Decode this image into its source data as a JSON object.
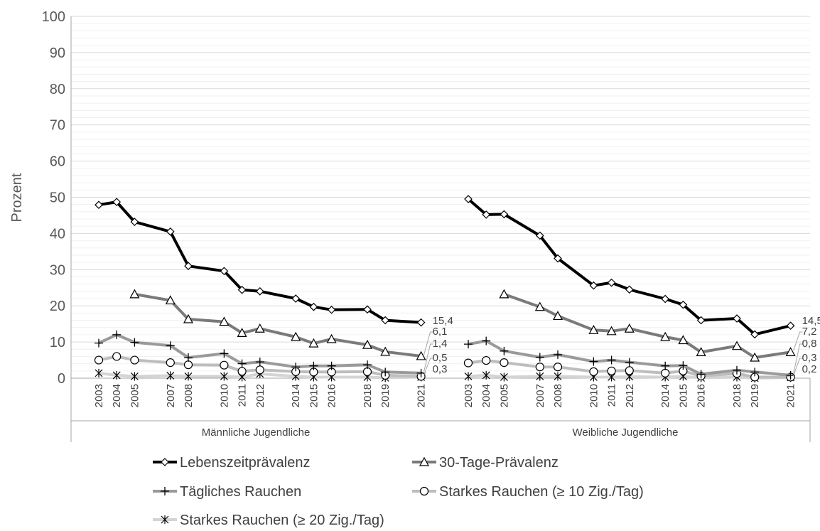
{
  "chart_data": {
    "type": "line",
    "ylabel": "Prozent",
    "ylim": [
      0,
      100
    ],
    "yticks": [
      0,
      10,
      20,
      30,
      40,
      50,
      60,
      70,
      80,
      90,
      100
    ],
    "grid": "horizontal",
    "legend_position": "bottom",
    "groups": [
      {
        "label": "Männliche Jugendliche",
        "x": [
          "2003",
          "2004",
          "2005",
          "2007",
          "2008",
          "2010",
          "2011",
          "2012",
          "2014",
          "2015",
          "2016",
          "2018",
          "2019",
          "2021"
        ],
        "series": [
          {
            "name": "Lebenszeitprävalenz",
            "values": [
              47.9,
              48.7,
              43.2,
              40.5,
              31.0,
              29.6,
              24.4,
              24.0,
              22.0,
              19.7,
              18.9,
              19.0,
              16.0,
              15.4
            ]
          },
          {
            "name": "30-Tage-Prävalenz",
            "values": [
              null,
              null,
              23.2,
              21.5,
              16.3,
              15.6,
              12.5,
              13.7,
              11.4,
              9.6,
              10.8,
              9.2,
              7.3,
              6.1
            ]
          },
          {
            "name": "Tägliches Rauchen",
            "values": [
              9.7,
              12.0,
              9.9,
              9.0,
              5.7,
              6.8,
              4.0,
              4.5,
              3.1,
              3.4,
              3.4,
              3.7,
              1.7,
              1.4
            ]
          },
          {
            "name": "Starkes Rauchen (≥ 10 Zig./Tag)",
            "values": [
              5.0,
              6.0,
              5.0,
              4.3,
              3.7,
              3.6,
              1.9,
              2.3,
              1.8,
              1.7,
              1.7,
              1.8,
              0.8,
              0.5
            ]
          },
          {
            "name": "Starkes Rauchen (≥ 20 Zig./Tag)",
            "values": [
              1.4,
              0.8,
              0.5,
              0.7,
              0.5,
              0.5,
              0.3,
              1.2,
              0.5,
              0.3,
              0.3,
              0.3,
              0.1,
              0.3
            ]
          }
        ],
        "end_labels": [
          "15,4",
          "6,1",
          "1,4",
          "0,5",
          "0,3"
        ]
      },
      {
        "label": "Weibliche Jugendliche",
        "x": [
          "2003",
          "2004",
          "2005",
          "2007",
          "2008",
          "2010",
          "2011",
          "2012",
          "2014",
          "2015",
          "2016",
          "2018",
          "2019",
          "2021"
        ],
        "series": [
          {
            "name": "Lebenszeitprävalenz",
            "values": [
              49.5,
              45.2,
              45.3,
              39.4,
              33.1,
              25.6,
              26.4,
              24.5,
              21.9,
              20.3,
              16.0,
              16.5,
              12.1,
              14.5
            ]
          },
          {
            "name": "30-Tage-Prävalenz",
            "values": [
              null,
              null,
              23.2,
              19.7,
              17.2,
              13.3,
              13.0,
              13.7,
              11.4,
              10.5,
              7.2,
              8.9,
              5.7,
              7.2
            ]
          },
          {
            "name": "Tägliches Rauchen",
            "values": [
              9.4,
              10.3,
              7.5,
              5.8,
              6.5,
              4.6,
              5.0,
              4.4,
              3.4,
              3.5,
              1.1,
              2.2,
              1.7,
              0.8
            ]
          },
          {
            "name": "Starkes Rauchen (≥ 10 Zig./Tag)",
            "values": [
              4.2,
              4.9,
              4.3,
              3.1,
              3.1,
              1.8,
              2.0,
              2.1,
              1.4,
              2.0,
              0.6,
              1.3,
              0.3,
              0.3
            ]
          },
          {
            "name": "Starkes Rauchen (≥ 20 Zig./Tag)",
            "values": [
              0.5,
              0.8,
              0.3,
              0.5,
              0.5,
              0.3,
              0.3,
              0.4,
              0.3,
              0.5,
              0.1,
              0.3,
              0.0,
              0.2
            ]
          }
        ],
        "end_labels": [
          "14,5",
          "7,2",
          "0,8",
          "0,3",
          "0,2"
        ]
      }
    ],
    "series_styles": [
      {
        "name": "Lebenszeitprävalenz",
        "color": "#000000",
        "marker": "diamond"
      },
      {
        "name": "30-Tage-Prävalenz",
        "color": "#7a7a7a",
        "marker": "triangle"
      },
      {
        "name": "Tägliches Rauchen",
        "color": "#9a9a9a",
        "marker": "plus"
      },
      {
        "name": "Starkes Rauchen (≥ 10 Zig./Tag)",
        "color": "#bdbdbd",
        "marker": "circle"
      },
      {
        "name": "Starkes Rauchen (≥ 20 Zig./Tag)",
        "color": "#d4d4d4",
        "marker": "star"
      }
    ]
  }
}
